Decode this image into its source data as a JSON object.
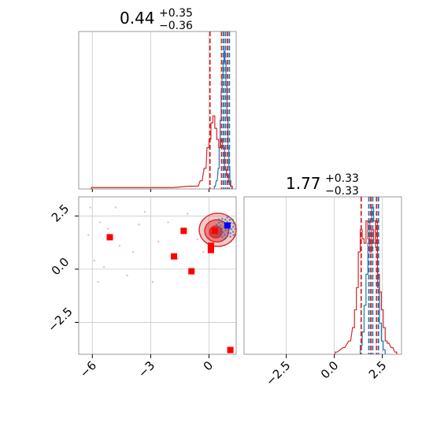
{
  "chart_data": {
    "type": "corner",
    "colors": {
      "blue": "#1f77b4",
      "red": "#d62728",
      "grid": "#c8c8c8",
      "marker_blue": "#0000ff",
      "marker_red": "#ff0000"
    },
    "panels": [
      {
        "id": "hist-p1",
        "type": "histogram",
        "title": {
          "value": "0.44",
          "plus": "+0.35",
          "minus": "−0.36"
        },
        "xlim": [
          -6.7,
          1.4
        ],
        "gridlines_x": [
          -6,
          -3,
          0
        ],
        "series": [
          {
            "name": "",
            "color": "blue",
            "bins": [
              [
                0.3,
                0.02
              ],
              [
                0.4,
                0.06
              ],
              [
                0.5,
                0.15
              ],
              [
                0.55,
                0.3
              ],
              [
                0.6,
                0.5
              ],
              [
                0.65,
                0.7
              ],
              [
                0.7,
                0.83
              ],
              [
                0.75,
                0.92
              ],
              [
                0.8,
                1.0
              ],
              [
                0.85,
                0.92
              ],
              [
                0.9,
                0.75
              ],
              [
                0.95,
                0.52
              ],
              [
                1.0,
                0.3
              ],
              [
                1.05,
                0.16
              ],
              [
                1.1,
                0.06
              ],
              [
                1.15,
                0.02
              ]
            ],
            "bin_width": 0.05,
            "quantiles": [
              0.75,
              0.85,
              1.05
            ]
          },
          {
            "name": "",
            "color": "red",
            "bins": [
              [
                -6.0,
                0.01
              ],
              [
                -4.0,
                0.01
              ],
              [
                -1.9,
                0.01
              ],
              [
                -1.0,
                0.02
              ],
              [
                -0.6,
                0.02
              ],
              [
                -0.4,
                0.06
              ],
              [
                -0.2,
                0.15
              ],
              [
                -0.05,
                0.3
              ],
              [
                0.05,
                0.36
              ],
              [
                0.15,
                0.48
              ],
              [
                0.25,
                0.53
              ],
              [
                0.35,
                0.44
              ],
              [
                0.45,
                0.36
              ],
              [
                0.55,
                0.3
              ],
              [
                0.65,
                0.36
              ],
              [
                0.75,
                0.3
              ],
              [
                0.85,
                0.14
              ],
              [
                0.95,
                0.1
              ],
              [
                1.05,
                0.05
              ],
              [
                1.15,
                0.02
              ]
            ],
            "bin_width": 0.1,
            "quantiles": [
              0.05,
              0.65,
              0.95
            ]
          }
        ]
      },
      {
        "id": "hist-p2",
        "type": "histogram",
        "title": {
          "value": "1.77",
          "plus": "+0.33",
          "minus": "−0.33"
        },
        "xlim": [
          -4.7,
          3.5
        ],
        "gridlines_x": [
          -2.5,
          0.0,
          2.5
        ],
        "series": [
          {
            "name": "",
            "color": "blue",
            "bins": [
              [
                1.4,
                0.04
              ],
              [
                1.5,
                0.1
              ],
              [
                1.6,
                0.22
              ],
              [
                1.7,
                0.36
              ],
              [
                1.8,
                0.5
              ],
              [
                1.9,
                0.6
              ],
              [
                2.0,
                0.66
              ],
              [
                2.1,
                0.6
              ],
              [
                2.2,
                0.48
              ],
              [
                2.3,
                0.3
              ],
              [
                2.4,
                0.14
              ],
              [
                2.5,
                0.06
              ],
              [
                2.6,
                0.02
              ]
            ],
            "bin_width": 0.1,
            "quantiles": [
              1.8,
              2.0,
              2.3
            ]
          },
          {
            "name": "",
            "color": "red",
            "bins": [
              [
                0.1,
                0.01
              ],
              [
                0.5,
                0.03
              ],
              [
                0.8,
                0.06
              ],
              [
                1.0,
                0.12
              ],
              [
                1.1,
                0.2
              ],
              [
                1.2,
                0.3
              ],
              [
                1.3,
                0.46
              ],
              [
                1.4,
                0.56
              ],
              [
                1.5,
                0.52
              ],
              [
                1.6,
                0.5
              ],
              [
                1.7,
                0.6
              ],
              [
                1.8,
                0.52
              ],
              [
                1.9,
                0.46
              ],
              [
                2.0,
                0.56
              ],
              [
                2.1,
                0.5
              ],
              [
                2.2,
                0.6
              ],
              [
                2.3,
                0.36
              ],
              [
                2.4,
                0.28
              ],
              [
                2.5,
                0.2
              ],
              [
                2.6,
                0.12
              ],
              [
                2.7,
                0.06
              ],
              [
                2.8,
                0.05
              ],
              [
                3.0,
                0.03
              ],
              [
                3.2,
                0.01
              ]
            ],
            "bin_width": 0.1,
            "quantiles": [
              1.4,
              1.9,
              2.2
            ]
          }
        ]
      },
      {
        "id": "scatter-2d",
        "type": "contour-scatter",
        "xlim": [
          -6.7,
          1.4
        ],
        "ylim": [
          -4.0,
          3.4
        ],
        "x_ticks": [
          "−6",
          "−3",
          "0"
        ],
        "x_tick_values": [
          -6,
          -3,
          0
        ],
        "y_ticks": [
          "2.5",
          "0.0",
          "−2.5"
        ],
        "y_tick_values": [
          2.5,
          0.0,
          -2.5
        ],
        "red_markers": [
          [
            -5.1,
            1.5
          ],
          [
            -1.3,
            1.8
          ],
          [
            -1.8,
            0.6
          ],
          [
            -0.9,
            -0.1
          ],
          [
            0.1,
            1.1
          ],
          [
            0.1,
            0.9
          ],
          [
            1.1,
            -3.8
          ],
          [
            0.3,
            1.8
          ]
        ],
        "blue_markers": [
          [
            0.95,
            2.05
          ]
        ],
        "faint_points": [
          [
            -6.1,
            2.9
          ],
          [
            -5.6,
            2.2
          ],
          [
            -5.2,
            1.9
          ],
          [
            -4.8,
            2.9
          ],
          [
            -5.9,
            0.4
          ],
          [
            -6.2,
            1.6
          ],
          [
            -5.4,
            0.1
          ],
          [
            -4.6,
            1.1
          ],
          [
            -3.3,
            2.7
          ],
          [
            -3.9,
            0.8
          ],
          [
            -2.6,
            1.3
          ],
          [
            -2.1,
            2.2
          ],
          [
            -1.6,
            0.5
          ],
          [
            -2.9,
            -0.6
          ],
          [
            -4.2,
            -0.3
          ],
          [
            -0.6,
            1.4
          ],
          [
            -0.3,
            0.8
          ],
          [
            -5.7,
            -0.6
          ],
          [
            -3.6,
            2.1
          ],
          [
            -1.1,
            2.6
          ]
        ],
        "contours": [
          {
            "center": [
              0.45,
              1.85
            ],
            "rx": 0.95,
            "ry": 0.78,
            "level": "outer"
          },
          {
            "center": [
              0.4,
              1.8
            ],
            "rx": 0.62,
            "ry": 0.52,
            "level": "middle"
          },
          {
            "center": [
              0.35,
              1.75
            ],
            "rx": 0.32,
            "ry": 0.28,
            "level": "inner"
          }
        ],
        "blue_cloud_center": [
          0.85,
          1.95
        ]
      },
      {
        "id": "hist-p2-axes",
        "type": "axis",
        "x_ticks": [
          "−2.5",
          "0.0",
          "2.5"
        ]
      }
    ]
  }
}
